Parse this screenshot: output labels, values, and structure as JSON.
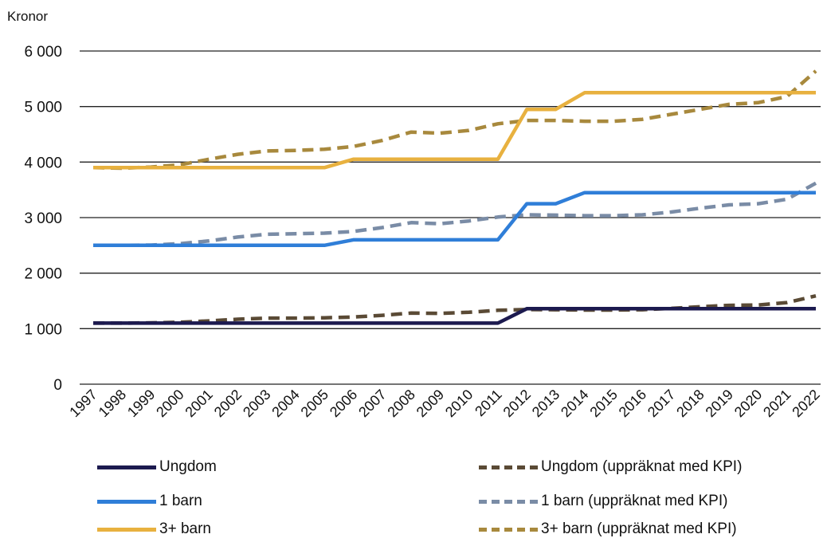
{
  "chart_data": {
    "type": "line",
    "ylabel": "Kronor",
    "ylim": [
      0,
      6000
    ],
    "yticks": [
      0,
      1000,
      2000,
      3000,
      4000,
      5000,
      6000
    ],
    "ytick_labels": [
      "0",
      "1 000",
      "2 000",
      "3 000",
      "4 000",
      "5 000",
      "6 000"
    ],
    "grid": true,
    "legend_position": "bottom",
    "x": [
      "1997",
      "1998",
      "1999",
      "2000",
      "2001",
      "2002",
      "2003",
      "2004",
      "2005",
      "2006",
      "2007",
      "2008",
      "2009",
      "2010",
      "2011",
      "2012",
      "2013",
      "2014",
      "2015",
      "2016",
      "2017",
      "2018",
      "2019",
      "2020",
      "2021",
      "2022"
    ],
    "series": [
      {
        "name": "Ungdom",
        "color": "#1c1a4f",
        "dash": false,
        "values": [
          1100,
          1100,
          1100,
          1100,
          1100,
          1100,
          1100,
          1100,
          1100,
          1100,
          1100,
          1100,
          1100,
          1100,
          1100,
          1360,
          1360,
          1360,
          1360,
          1360,
          1360,
          1360,
          1360,
          1360,
          1360,
          1360
        ]
      },
      {
        "name": "1 barn",
        "color": "#2f7ed8",
        "dash": false,
        "values": [
          2500,
          2500,
          2500,
          2500,
          2500,
          2500,
          2500,
          2500,
          2500,
          2600,
          2600,
          2600,
          2600,
          2600,
          2600,
          3250,
          3250,
          3450,
          3450,
          3450,
          3450,
          3450,
          3450,
          3450,
          3450,
          3450
        ]
      },
      {
        "name": "3+ barn",
        "color": "#e8b13f",
        "dash": false,
        "values": [
          3900,
          3900,
          3900,
          3900,
          3900,
          3900,
          3900,
          3900,
          3900,
          4050,
          4050,
          4050,
          4050,
          4050,
          4050,
          4950,
          4950,
          5250,
          5250,
          5250,
          5250,
          5250,
          5250,
          5250,
          5250,
          5250
        ]
      },
      {
        "name": "Ungdom (uppräknat med KPI)",
        "color": "#5a4a35",
        "dash": true,
        "values": [
          1100,
          1100,
          1105,
          1115,
          1140,
          1170,
          1190,
          1190,
          1195,
          1210,
          1240,
          1280,
          1275,
          1295,
          1330,
          1345,
          1340,
          1335,
          1335,
          1340,
          1365,
          1395,
          1420,
          1425,
          1470,
          1590
        ]
      },
      {
        "name": "1 barn (uppräknat med KPI)",
        "color": "#7a8ca6",
        "dash": true,
        "values": [
          2500,
          2500,
          2505,
          2530,
          2580,
          2650,
          2700,
          2710,
          2720,
          2750,
          2820,
          2910,
          2890,
          2940,
          3010,
          3050,
          3045,
          3035,
          3035,
          3050,
          3100,
          3170,
          3230,
          3250,
          3330,
          3620
        ]
      },
      {
        "name": "3+ barn (uppräknat med KPI)",
        "color": "#a8893d",
        "dash": true,
        "values": [
          3900,
          3890,
          3910,
          3950,
          4050,
          4140,
          4200,
          4210,
          4230,
          4280,
          4390,
          4540,
          4520,
          4570,
          4690,
          4750,
          4750,
          4735,
          4735,
          4770,
          4860,
          4950,
          5040,
          5070,
          5180,
          5640
        ]
      }
    ]
  }
}
